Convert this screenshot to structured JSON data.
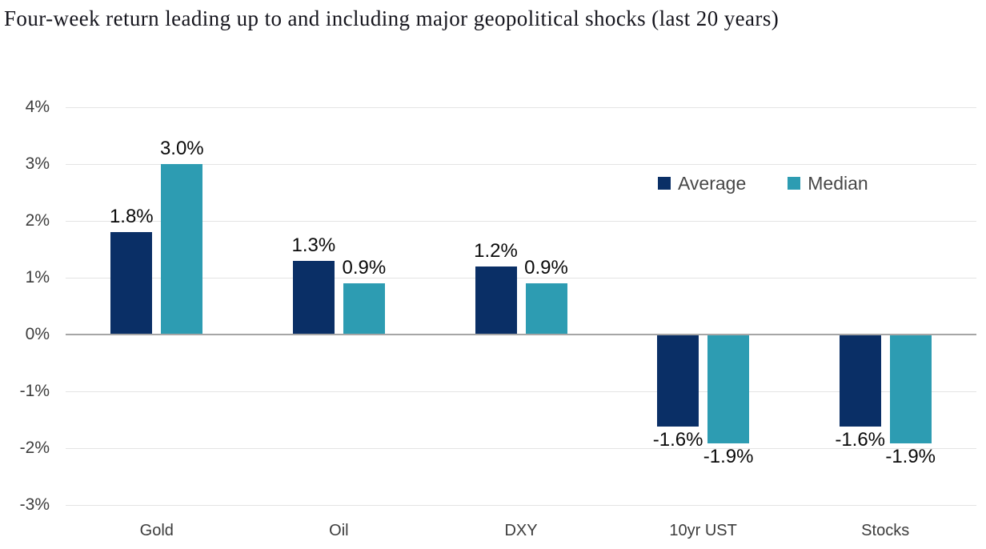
{
  "chart_data": {
    "type": "bar",
    "title": "Four-week return leading up to and including major geopolitical shocks (last 20 years)",
    "categories": [
      "Gold",
      "Oil",
      "DXY",
      "10yr UST",
      "Stocks"
    ],
    "series": [
      {
        "name": "Average",
        "color": "#0a2f66",
        "values": [
          1.8,
          1.3,
          1.2,
          -1.6,
          -1.6
        ],
        "labels": [
          "1.8%",
          "1.3%",
          "1.2%",
          "-1.6%",
          "-1.6%"
        ]
      },
      {
        "name": "Median",
        "color": "#2d9cb2",
        "values": [
          3.0,
          0.9,
          0.9,
          -1.9,
          -1.9
        ],
        "labels": [
          "3.0%",
          "0.9%",
          "0.9%",
          "-1.9%",
          "-1.9%"
        ]
      }
    ],
    "xlabel": "",
    "ylabel": "",
    "y_axis": {
      "tick_labels": [
        "4%",
        "3%",
        "2%",
        "1%",
        "0%",
        "-1%",
        "-2%",
        "-3%"
      ],
      "tick_values": [
        4,
        3,
        2,
        1,
        0,
        -1,
        -2,
        -3
      ],
      "max": 4,
      "min": -3,
      "unit": "%"
    },
    "grid": true,
    "legend_position": "upper-right-inside",
    "colors": {
      "gridline": "#e4e4e4",
      "zero_line": "#a6a6a6",
      "axis_text": "#3d3d3d",
      "value_label_text": "#0a0a0a",
      "title_text": "#15151d"
    }
  }
}
